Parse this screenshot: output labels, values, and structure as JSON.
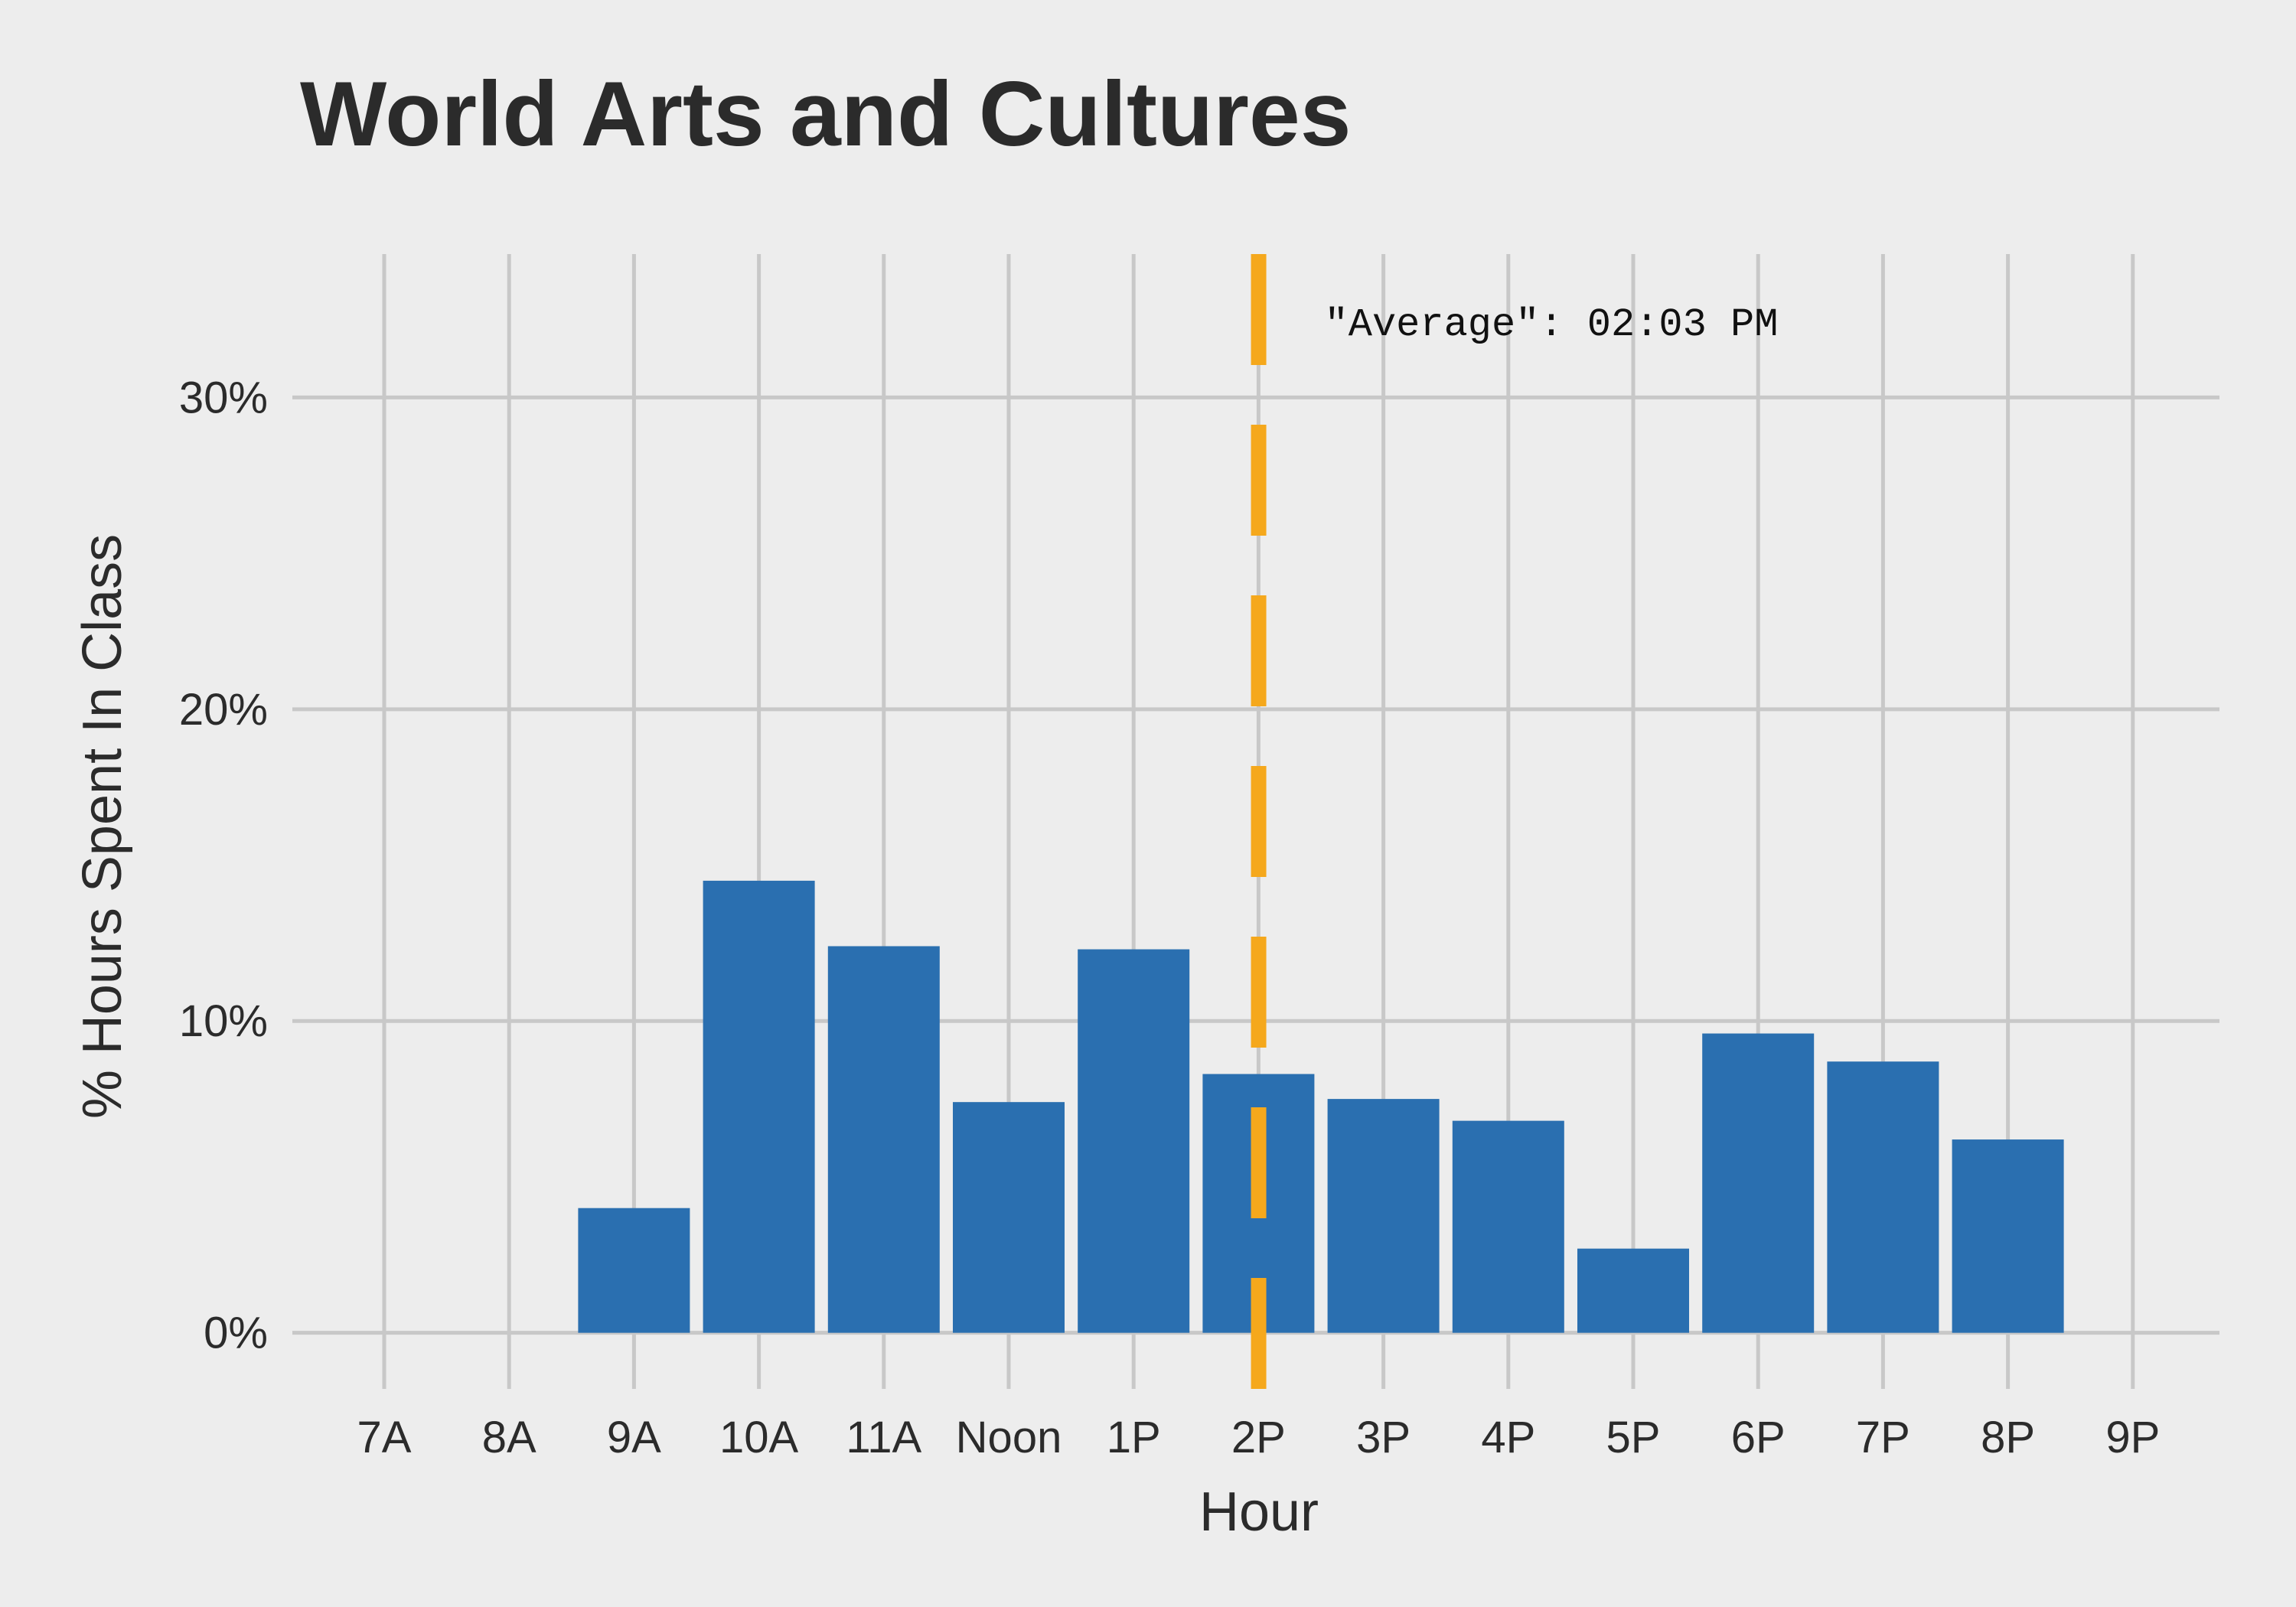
{
  "chart_data": {
    "type": "bar",
    "title": "World Arts and Cultures",
    "xlabel": "Hour",
    "ylabel": "% Hours Spent In Class",
    "categories": [
      "7A",
      "8A",
      "9A",
      "10A",
      "11A",
      "Noon",
      "1P",
      "2P",
      "3P",
      "4P",
      "5P",
      "6P",
      "7P",
      "8P",
      "9P"
    ],
    "values": [
      0,
      0,
      4.0,
      14.5,
      12.4,
      7.4,
      12.3,
      8.3,
      7.5,
      6.8,
      2.7,
      9.6,
      8.7,
      6.2,
      0
    ],
    "y_ticks": [
      0,
      10,
      20,
      30
    ],
    "y_tick_labels": [
      "0%",
      "10%",
      "20%",
      "30%"
    ],
    "ylim": [
      -1.8,
      34.6
    ],
    "grid": true,
    "average_line": {
      "x_hour_index": 7.05,
      "label": "\"Average\": 02:03 PM",
      "color": "#f5a81c"
    },
    "colors": {
      "bar": "#2a6fb0",
      "background": "#ededed",
      "grid": "#c8c8c8"
    }
  }
}
